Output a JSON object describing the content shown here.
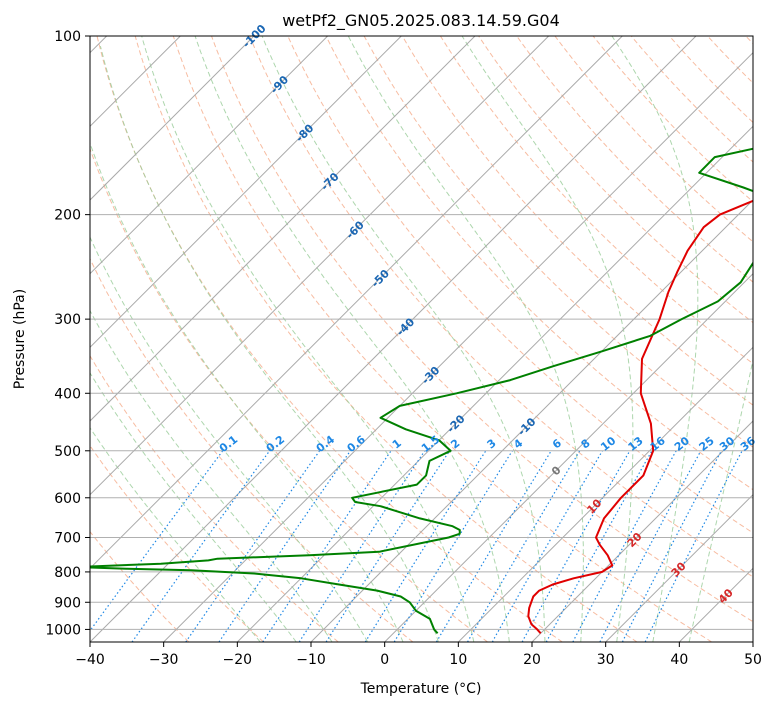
{
  "chart_data": {
    "type": "line",
    "title": "wetPf2_GN05.2025.083.14.59.G04",
    "xlabel": "Temperature (°C)",
    "ylabel": "Pressure (hPa)",
    "xlim": [
      -40,
      50
    ],
    "ylim_hpa": [
      1050,
      100
    ],
    "y_scale": "log",
    "grid": true,
    "x_ticks": [
      -40,
      -30,
      -20,
      -10,
      0,
      10,
      20,
      30,
      40,
      50
    ],
    "y_ticks": [
      1000,
      900,
      800,
      700,
      600,
      500,
      400,
      300,
      200,
      100
    ],
    "series": [
      {
        "color": "#e00000",
        "p": [
          1015,
          1000,
          980,
          950,
          920,
          900,
          880,
          860,
          840,
          820,
          800,
          780,
          750,
          720,
          700,
          650,
          600,
          550,
          500,
          450,
          400,
          350,
          300,
          270,
          250,
          230,
          210,
          200,
          190,
          180,
          170,
          160,
          150,
          140,
          130,
          120,
          110,
          100
        ],
        "t": [
          20.0,
          19.0,
          17.5,
          16.0,
          15.0,
          14.5,
          14.0,
          14.0,
          15.0,
          17.0,
          20.0,
          20.5,
          18.5,
          16.0,
          14.5,
          13.0,
          12.5,
          12.5,
          10.5,
          6.5,
          1.0,
          -3.5,
          -6.5,
          -9.0,
          -10.5,
          -12.0,
          -13.0,
          -12.5,
          -10.0,
          -6.0,
          -3.0,
          -1.0,
          1.0,
          3.0,
          5.0,
          5.0,
          4.0,
          4.0
        ]
      },
      {
        "color": "#008000",
        "p": [
          1015,
          1000,
          960,
          930,
          900,
          880,
          860,
          840,
          820,
          805,
          795,
          790,
          785,
          775,
          765,
          760,
          750,
          740,
          700,
          690,
          680,
          670,
          650,
          620,
          610,
          600,
          570,
          550,
          520,
          500,
          480,
          460,
          440,
          420,
          400,
          380,
          360,
          340,
          320,
          300,
          280,
          260,
          240,
          220,
          200,
          190,
          180,
          170,
          160,
          150,
          140,
          130,
          120,
          110,
          100
        ],
        "t": [
          6.0,
          5.0,
          3.0,
          0.0,
          -2.0,
          -4.0,
          -8.0,
          -14.0,
          -20.0,
          -27.0,
          -36.0,
          -45.0,
          -52.0,
          -41.0,
          -35.0,
          -34.0,
          -22.0,
          -13.0,
          -5.5,
          -4.5,
          -5.0,
          -6.5,
          -12.0,
          -19.0,
          -23.0,
          -24.0,
          -17.0,
          -17.0,
          -18.5,
          -17.0,
          -20.0,
          -26.0,
          -31.0,
          -30.0,
          -24.0,
          -18.5,
          -14.5,
          -10.0,
          -5.5,
          -3.5,
          -1.0,
          -0.5,
          -1.5,
          -1.5,
          -2.0,
          -6.0,
          -13.0,
          -21.0,
          -21.0,
          -13.0,
          -8.0,
          -4.0,
          -4.0,
          -2.0,
          -1.0
        ]
      }
    ],
    "isotherm_labels": [
      "-100",
      "-90",
      "-80",
      "-70",
      "-60",
      "-50",
      "-40",
      "-30",
      "-20",
      "-10",
      "0",
      "10",
      "20",
      "30",
      "40"
    ],
    "mixing_ratio_labels": [
      "0.1",
      "0.2",
      "0.4",
      "0.6",
      "1",
      "1.5",
      "2",
      "3",
      "4",
      "6",
      "8",
      "10",
      "13",
      "16",
      "20",
      "25",
      "30",
      "36"
    ],
    "colors": {
      "temperature": "#e00000",
      "dewpoint": "#008000",
      "isotherm_cold": "#1a66b3",
      "isotherm_zero": "#777777",
      "isotherm_warm": "#d62728",
      "mixing_ratio": "#1e88e5",
      "dry_adiabat": "#f4a582",
      "moist_adiabat": "#99cc99",
      "skew_isotherm": "#aaaaaa",
      "grid": "#b0b0b0"
    }
  }
}
